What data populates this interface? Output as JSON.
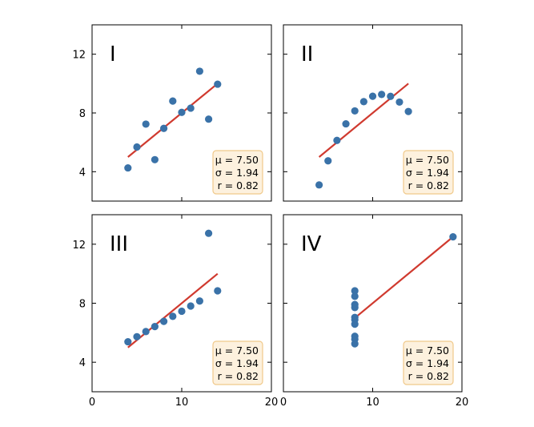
{
  "chart_data": {
    "type": "scatter",
    "layout": "2x2 grid, shared axes",
    "xlim": [
      0,
      20
    ],
    "ylim": [
      2,
      14
    ],
    "xticks": [
      0,
      10,
      20
    ],
    "yticks": [
      4,
      8,
      12
    ],
    "x_tick_labels": [
      "0",
      "10",
      "20"
    ],
    "y_tick_labels": [
      "4",
      "8",
      "12"
    ],
    "grid": false,
    "point_color": "#3a72a8",
    "fit_line_color": "#d03a2f",
    "stats_box_color": "#fdf1de",
    "stats_box_border": "#f0c98a",
    "panels": [
      {
        "label": "I",
        "x": [
          10,
          8,
          13,
          9,
          11,
          14,
          6,
          4,
          12,
          7,
          5
        ],
        "y": [
          8.04,
          6.95,
          7.58,
          8.81,
          8.33,
          9.96,
          7.24,
          4.26,
          10.84,
          4.82,
          5.68
        ],
        "fit": {
          "x": [
            4,
            14
          ],
          "y": [
            5.0,
            10.0
          ]
        },
        "stats": {
          "mu": "μ = 7.50",
          "sigma": "σ = 1.94",
          "r": "r = 0.82"
        }
      },
      {
        "label": "II",
        "x": [
          10,
          8,
          13,
          9,
          11,
          14,
          6,
          4,
          12,
          7,
          5
        ],
        "y": [
          9.14,
          8.14,
          8.74,
          8.77,
          9.26,
          8.1,
          6.13,
          3.1,
          9.13,
          7.26,
          4.74
        ],
        "fit": {
          "x": [
            4,
            14
          ],
          "y": [
            5.0,
            10.0
          ]
        },
        "stats": {
          "mu": "μ = 7.50",
          "sigma": "σ = 1.94",
          "r": "r = 0.82"
        }
      },
      {
        "label": "III",
        "x": [
          10,
          8,
          13,
          9,
          11,
          14,
          6,
          4,
          12,
          7,
          5
        ],
        "y": [
          7.46,
          6.77,
          12.74,
          7.11,
          7.81,
          8.84,
          6.08,
          5.39,
          8.15,
          6.42,
          5.73
        ],
        "fit": {
          "x": [
            4,
            14
          ],
          "y": [
            5.0,
            10.0
          ]
        },
        "stats": {
          "mu": "μ = 7.50",
          "sigma": "σ = 1.94",
          "r": "r = 0.82"
        }
      },
      {
        "label": "IV",
        "x": [
          8,
          8,
          8,
          8,
          8,
          8,
          8,
          19,
          8,
          8,
          8
        ],
        "y": [
          6.58,
          5.76,
          7.71,
          8.84,
          8.47,
          7.04,
          5.25,
          12.5,
          5.56,
          7.91,
          6.89
        ],
        "fit": {
          "x": [
            8,
            19
          ],
          "y": [
            7.0,
            12.5
          ]
        },
        "stats": {
          "mu": "μ = 7.50",
          "sigma": "σ = 1.94",
          "r": "r = 0.82"
        }
      }
    ]
  }
}
